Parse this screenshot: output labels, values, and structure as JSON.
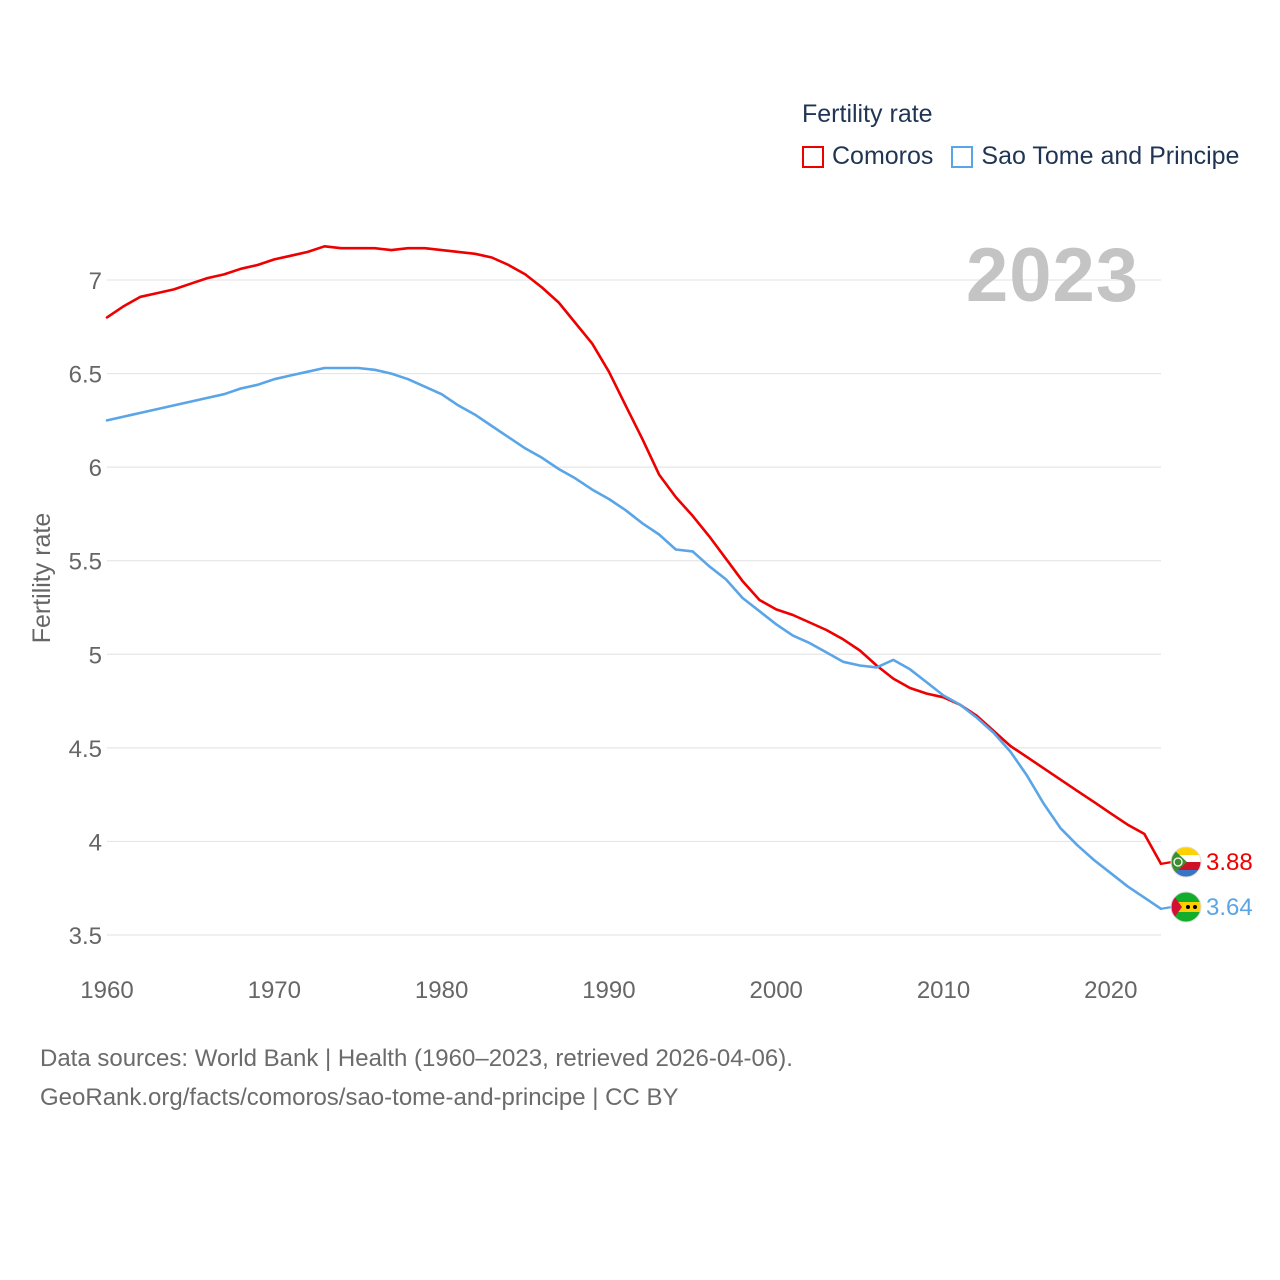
{
  "legend": {
    "title": "Fertility rate",
    "items": [
      {
        "label": "Comoros",
        "color": "#ee0000"
      },
      {
        "label": "Sao Tome and Principe",
        "color": "#5aa5e8"
      }
    ]
  },
  "current_year": "2023",
  "footer": {
    "line1": "Data sources: World Bank | Health (1960–2023, retrieved 2026-04-06).",
    "line2": "GeoRank.org/facts/comoros/sao-tome-and-principe | CC BY"
  },
  "chart_data": {
    "type": "line",
    "title": "Fertility rate",
    "xlabel": "",
    "ylabel": "Fertility rate",
    "xlim": [
      1960,
      2023
    ],
    "ylim": [
      3.5,
      7.25
    ],
    "x_ticks": [
      1960,
      1970,
      1980,
      1990,
      2000,
      2010,
      2020
    ],
    "y_ticks": [
      3.5,
      4,
      4.5,
      5,
      5.5,
      6,
      6.5,
      7
    ],
    "y_tick_labels": [
      "3.5",
      "4",
      "4.5",
      "5",
      "5.5",
      "6",
      "6.5",
      "7"
    ],
    "grid": true,
    "x": [
      1960,
      1961,
      1962,
      1963,
      1964,
      1965,
      1966,
      1967,
      1968,
      1969,
      1970,
      1971,
      1972,
      1973,
      1974,
      1975,
      1976,
      1977,
      1978,
      1979,
      1980,
      1981,
      1982,
      1983,
      1984,
      1985,
      1986,
      1987,
      1988,
      1989,
      1990,
      1991,
      1992,
      1993,
      1994,
      1995,
      1996,
      1997,
      1998,
      1999,
      2000,
      2001,
      2002,
      2003,
      2004,
      2005,
      2006,
      2007,
      2008,
      2009,
      2010,
      2011,
      2012,
      2013,
      2014,
      2015,
      2016,
      2017,
      2018,
      2019,
      2020,
      2021,
      2022,
      2023
    ],
    "series": [
      {
        "name": "Comoros",
        "color": "#ee0000",
        "end_label": "3.88",
        "values": [
          6.8,
          6.86,
          6.91,
          6.93,
          6.95,
          6.98,
          7.01,
          7.03,
          7.06,
          7.08,
          7.11,
          7.13,
          7.15,
          7.18,
          7.17,
          7.17,
          7.17,
          7.16,
          7.17,
          7.17,
          7.16,
          7.15,
          7.14,
          7.12,
          7.08,
          7.03,
          6.96,
          6.88,
          6.77,
          6.66,
          6.51,
          6.33,
          6.15,
          5.96,
          5.84,
          5.74,
          5.63,
          5.51,
          5.39,
          5.29,
          5.24,
          5.21,
          5.17,
          5.13,
          5.08,
          5.02,
          4.94,
          4.87,
          4.82,
          4.79,
          4.77,
          4.73,
          4.67,
          4.59,
          4.51,
          4.45,
          4.39,
          4.33,
          4.27,
          4.21,
          4.15,
          4.09,
          4.04,
          3.88
        ]
      },
      {
        "name": "Sao Tome and Principe",
        "color": "#5aa5e8",
        "end_label": "3.64",
        "values": [
          6.25,
          6.27,
          6.29,
          6.31,
          6.33,
          6.35,
          6.37,
          6.39,
          6.42,
          6.44,
          6.47,
          6.49,
          6.51,
          6.53,
          6.53,
          6.53,
          6.52,
          6.5,
          6.47,
          6.43,
          6.39,
          6.33,
          6.28,
          6.22,
          6.16,
          6.1,
          6.05,
          5.99,
          5.94,
          5.88,
          5.83,
          5.77,
          5.7,
          5.64,
          5.56,
          5.55,
          5.47,
          5.4,
          5.3,
          5.23,
          5.16,
          5.1,
          5.06,
          5.01,
          4.96,
          4.94,
          4.93,
          4.97,
          4.92,
          4.85,
          4.78,
          4.73,
          4.66,
          4.58,
          4.48,
          4.35,
          4.2,
          4.07,
          3.98,
          3.9,
          3.83,
          3.76,
          3.7,
          3.64
        ]
      }
    ]
  }
}
